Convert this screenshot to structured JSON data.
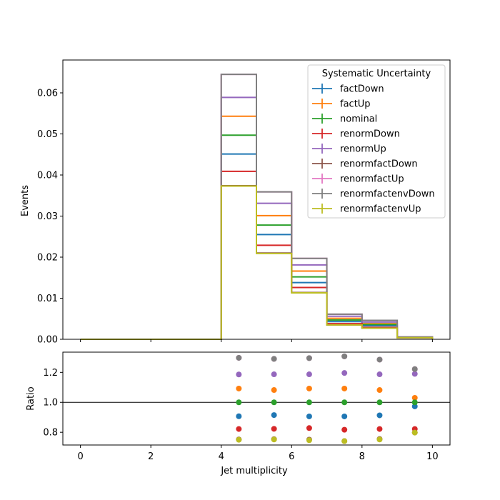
{
  "chart_data": {
    "type": "histogram-step-with-ratio",
    "main_panel": {
      "ylabel": "Events",
      "ylim": [
        0,
        0.068
      ],
      "yticks": [
        0,
        0.01,
        0.02,
        0.03,
        0.04,
        0.05,
        0.06
      ],
      "ytick_labels": [
        "0.00",
        "0.01",
        "0.02",
        "0.03",
        "0.04",
        "0.05",
        "0.06"
      ],
      "xlim": [
        -0.5,
        10.5
      ],
      "bin_edges": [
        0,
        1,
        2,
        3,
        4,
        5,
        6,
        7,
        8,
        9,
        10
      ],
      "legend_title": "Systematic Uncertainty",
      "legend_position": "top-right",
      "series": [
        {
          "name": "factDown",
          "color": "#1f77b4",
          "values": [
            0,
            0,
            0,
            0,
            0.0451,
            0.0255,
            0.0138,
            0.0043,
            0.0033,
            0.00046
          ]
        },
        {
          "name": "factUp",
          "color": "#ff7f0e",
          "values": [
            0,
            0,
            0,
            0,
            0.0543,
            0.0301,
            0.0166,
            0.0051,
            0.0038,
            0.00049
          ]
        },
        {
          "name": "nominal",
          "color": "#2ca02c",
          "values": [
            0,
            0,
            0,
            0,
            0.0497,
            0.0278,
            0.0152,
            0.0047,
            0.0036,
            0.00047
          ]
        },
        {
          "name": "renormDown",
          "color": "#d62728",
          "values": [
            0,
            0,
            0,
            0,
            0.0409,
            0.0229,
            0.0126,
            0.0038,
            0.0029,
            0.00039
          ]
        },
        {
          "name": "renormUp",
          "color": "#9467bd",
          "values": [
            0,
            0,
            0,
            0,
            0.0589,
            0.0331,
            0.0181,
            0.0056,
            0.0042,
            0.00056
          ]
        },
        {
          "name": "renormfactDown",
          "color": "#8c564b",
          "values": [
            0,
            0,
            0,
            0,
            0.0374,
            0.021,
            0.0114,
            0.0035,
            0.0027,
            0.00038
          ]
        },
        {
          "name": "renormfactUp",
          "color": "#e377c2",
          "values": [
            0,
            0,
            0,
            0,
            0.0645,
            0.0359,
            0.0197,
            0.0061,
            0.0046,
            0.00057
          ]
        },
        {
          "name": "renormfactenvDown",
          "color": "#7f7f7f",
          "values": [
            0,
            0,
            0,
            0,
            0.0645,
            0.0359,
            0.0197,
            0.0061,
            0.0046,
            0.00057
          ]
        },
        {
          "name": "renormfactenvUp",
          "color": "#bcbd22",
          "values": [
            0,
            0,
            0,
            0,
            0.0373,
            0.0209,
            0.0113,
            0.0035,
            0.0027,
            0.00038
          ]
        }
      ]
    },
    "ratio_panel": {
      "ylabel": "Ratio",
      "ylim": [
        0.715,
        1.335
      ],
      "yticks": [
        0.8,
        1.0,
        1.2
      ],
      "ytick_labels": [
        "0.8",
        "1.0",
        "1.2"
      ],
      "reference_line": 1.0,
      "xlabel": "Jet multiplicity",
      "xticks": [
        0,
        2,
        4,
        6,
        8,
        10
      ],
      "xtick_labels": [
        "0",
        "2",
        "4",
        "6",
        "8",
        "10"
      ],
      "x": [
        4.5,
        5.5,
        6.5,
        7.5,
        8.5,
        9.5
      ],
      "series": [
        {
          "name": "factDown",
          "color": "#1f77b4",
          "values": [
            0.907,
            0.915,
            0.906,
            0.906,
            0.913,
            0.973
          ]
        },
        {
          "name": "factUp",
          "color": "#ff7f0e",
          "values": [
            1.092,
            1.082,
            1.092,
            1.092,
            1.082,
            1.03
          ]
        },
        {
          "name": "nominal",
          "color": "#2ca02c",
          "values": [
            1.0,
            1.0,
            1.0,
            1.0,
            1.0,
            1.0
          ]
        },
        {
          "name": "renormDown",
          "color": "#d62728",
          "values": [
            0.822,
            0.823,
            0.828,
            0.817,
            0.822,
            0.822
          ]
        },
        {
          "name": "renormUp",
          "color": "#9467bd",
          "values": [
            1.186,
            1.187,
            1.187,
            1.196,
            1.187,
            1.19
          ]
        },
        {
          "name": "renormfactDown",
          "color": "#8c564b",
          "values": [
            0.752,
            0.754,
            0.751,
            0.741,
            0.755,
            0.798
          ]
        },
        {
          "name": "renormfactUp",
          "color": "#e377c2",
          "values": [
            1.297,
            1.29,
            1.295,
            1.307,
            1.285,
            1.222
          ]
        },
        {
          "name": "renormfactenvDown",
          "color": "#7f7f7f",
          "values": [
            1.297,
            1.29,
            1.295,
            1.307,
            1.285,
            1.222
          ]
        },
        {
          "name": "renormfactenvUp",
          "color": "#bcbd22",
          "values": [
            0.75,
            0.752,
            0.747,
            0.741,
            0.752,
            0.798
          ]
        }
      ]
    }
  }
}
